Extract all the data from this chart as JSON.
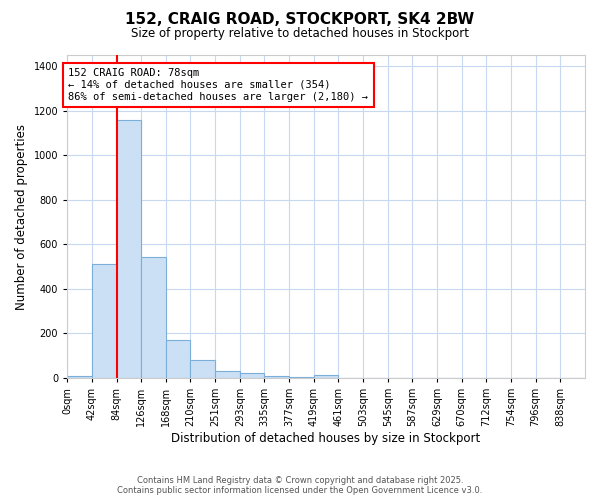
{
  "title1": "152, CRAIG ROAD, STOCKPORT, SK4 2BW",
  "title2": "Size of property relative to detached houses in Stockport",
  "xlabel": "Distribution of detached houses by size in Stockport",
  "ylabel": "Number of detached properties",
  "categories": [
    "0sqm",
    "42sqm",
    "84sqm",
    "126sqm",
    "168sqm",
    "210sqm",
    "251sqm",
    "293sqm",
    "335sqm",
    "377sqm",
    "419sqm",
    "461sqm",
    "503sqm",
    "545sqm",
    "587sqm",
    "629sqm",
    "670sqm",
    "712sqm",
    "754sqm",
    "796sqm",
    "838sqm"
  ],
  "bar_heights": [
    10,
    510,
    1160,
    545,
    170,
    83,
    32,
    22,
    10,
    5,
    12,
    0,
    0,
    0,
    0,
    0,
    0,
    0,
    0,
    0,
    0
  ],
  "bar_color": "#cce0f5",
  "bar_edge_color": "#7aafda",
  "ylim": [
    0,
    1450
  ],
  "yticks": [
    0,
    200,
    400,
    600,
    800,
    1000,
    1200,
    1400
  ],
  "vline_x": 84,
  "vline_color": "red",
  "bin_width": 42,
  "annotation_text": "152 CRAIG ROAD: 78sqm\n← 14% of detached houses are smaller (354)\n86% of semi-detached houses are larger (2,180) →",
  "annotation_box_color": "white",
  "annotation_border_color": "red",
  "footer1": "Contains HM Land Registry data © Crown copyright and database right 2025.",
  "footer2": "Contains public sector information licensed under the Open Government Licence v3.0.",
  "bg_color": "#ffffff",
  "plot_bg_color": "#ffffff",
  "grid_color": "#c8d8f0"
}
